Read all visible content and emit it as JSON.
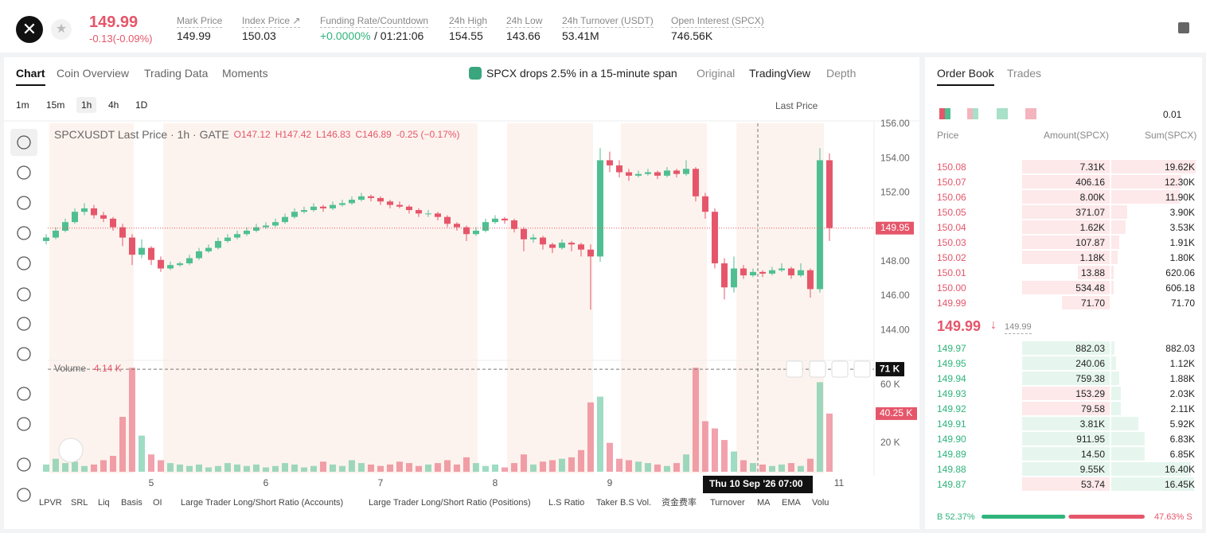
{
  "header": {
    "price": "149.99",
    "change": "-0.13(-0.09%)",
    "stats": [
      {
        "label": "Mark Price",
        "value": "149.99"
      },
      {
        "label": "Index Price ↗",
        "value": "150.03"
      },
      {
        "label": "Funding Rate/Countdown",
        "value": "+0.0000%",
        "extra": "/ 01:21:06"
      },
      {
        "label": "24h High",
        "value": "154.55"
      },
      {
        "label": "24h Low",
        "value": "143.66"
      },
      {
        "label": "24h Turnover (USDT)",
        "value": "53.41M"
      },
      {
        "label": "Open Interest (SPCX)",
        "value": "746.56K"
      }
    ]
  },
  "chart_tabs": [
    "Chart",
    "Coin Overview",
    "Trading Data",
    "Moments"
  ],
  "news": "SPCX drops 2.5% in a 15-minute span",
  "view_tabs": [
    "Original",
    "TradingView",
    "Depth"
  ],
  "timeframes": [
    "1m",
    "15m",
    "1h",
    "4h",
    "1D"
  ],
  "price_type": "Last Price",
  "indicators": [
    "LPVR",
    "SRL",
    "Liq",
    "Basis",
    "OI",
    "Large Trader Long/Short Ratio (Accounts)",
    "Large Trader Long/Short Ratio (Positions)",
    "L.S Ratio",
    "Taker B.S Vol.",
    "资金费率",
    "Turnover",
    "MA",
    "EMA",
    "Volu"
  ],
  "chart_data": {
    "type": "candlestick",
    "up_color": "#4fbf91",
    "down_color": "#e5566a",
    "legend": {
      "symbol": "SPCXUSDT Last Price · 1h · GATE",
      "open": "O147.12",
      "high": "H147.42",
      "low": "L146.83",
      "close": "C146.89",
      "change": "-0.25 (−0.17%)"
    },
    "xlim": [
      -0.25,
      86.67
    ],
    "xticks": [
      {
        "value": 11,
        "label": "5"
      },
      {
        "value": 23,
        "label": "6"
      },
      {
        "value": 35,
        "label": "7"
      },
      {
        "value": 47,
        "label": "8"
      },
      {
        "value": 59,
        "label": "9"
      },
      {
        "value": 83,
        "label": "11"
      }
    ],
    "ylim": [
      142.3,
      156.28
    ],
    "yticks": [
      {
        "value": 144,
        "label": "144.00"
      },
      {
        "value": 146,
        "label": "146.00"
      },
      {
        "value": 148,
        "label": "148.00"
      },
      {
        "value": 150,
        "label": "150.00"
      },
      {
        "value": 152,
        "label": "152.00"
      },
      {
        "value": 154,
        "label": "154.00"
      },
      {
        "value": 156,
        "label": "156.00"
      }
    ],
    "last_price": {
      "value": 149.95,
      "label": "149.95"
    },
    "crosshair": {
      "label": "Thu 10 Sep '26   07:00",
      "level": {
        "value": 71000,
        "label": "71 K"
      }
    },
    "candles": [
      [
        149.2,
        149.6,
        149.0,
        149.4
      ],
      [
        149.4,
        150.0,
        149.3,
        149.8
      ],
      [
        149.8,
        150.5,
        149.7,
        150.3
      ],
      [
        150.3,
        151.1,
        150.2,
        150.9
      ],
      [
        150.9,
        151.4,
        150.7,
        151.1
      ],
      [
        151.1,
        151.3,
        150.5,
        150.7
      ],
      [
        150.7,
        150.9,
        150.3,
        150.5
      ],
      [
        150.5,
        150.6,
        149.8,
        150.0
      ],
      [
        150.0,
        150.2,
        148.9,
        149.4
      ],
      [
        149.4,
        149.6,
        147.8,
        148.4
      ],
      [
        148.4,
        149.3,
        148.2,
        148.8
      ],
      [
        148.8,
        148.9,
        147.8,
        148.1
      ],
      [
        148.1,
        148.3,
        147.4,
        147.6
      ],
      [
        147.6,
        148.0,
        147.5,
        147.8
      ],
      [
        147.8,
        148.0,
        147.7,
        147.9
      ],
      [
        147.9,
        148.4,
        147.8,
        148.2
      ],
      [
        148.2,
        148.8,
        148.1,
        148.6
      ],
      [
        148.6,
        149.0,
        148.5,
        148.8
      ],
      [
        148.8,
        149.4,
        148.7,
        149.2
      ],
      [
        149.2,
        149.6,
        149.1,
        149.4
      ],
      [
        149.4,
        149.8,
        149.3,
        149.6
      ],
      [
        149.6,
        150.0,
        149.5,
        149.8
      ],
      [
        149.8,
        150.2,
        149.7,
        150.0
      ],
      [
        150.0,
        150.3,
        149.9,
        150.1
      ],
      [
        150.1,
        150.5,
        150.0,
        150.3
      ],
      [
        150.3,
        150.8,
        150.2,
        150.6
      ],
      [
        150.6,
        151.1,
        150.5,
        150.9
      ],
      [
        150.9,
        151.2,
        150.8,
        151.0
      ],
      [
        151.0,
        151.4,
        150.9,
        151.2
      ],
      [
        151.2,
        151.3,
        150.9,
        151.1
      ],
      [
        151.1,
        151.5,
        151.0,
        151.3
      ],
      [
        151.3,
        151.6,
        151.2,
        151.4
      ],
      [
        151.4,
        151.8,
        151.3,
        151.6
      ],
      [
        151.6,
        152.0,
        151.5,
        151.8
      ],
      [
        151.8,
        151.9,
        151.5,
        151.7
      ],
      [
        151.7,
        151.8,
        151.3,
        151.5
      ],
      [
        151.5,
        151.6,
        151.1,
        151.3
      ],
      [
        151.3,
        151.5,
        151.1,
        151.2
      ],
      [
        151.2,
        151.3,
        150.8,
        151.0
      ],
      [
        151.0,
        151.1,
        150.6,
        150.8
      ],
      [
        150.8,
        151.0,
        150.6,
        150.8
      ],
      [
        150.8,
        150.9,
        150.4,
        150.6
      ],
      [
        150.6,
        150.7,
        150.0,
        150.2
      ],
      [
        150.2,
        150.3,
        149.8,
        150.0
      ],
      [
        150.0,
        150.1,
        149.2,
        149.6
      ],
      [
        149.6,
        150.0,
        149.5,
        149.8
      ],
      [
        149.8,
        150.5,
        149.7,
        150.3
      ],
      [
        150.3,
        150.7,
        150.2,
        150.5
      ],
      [
        150.5,
        150.6,
        150.2,
        150.4
      ],
      [
        150.4,
        150.5,
        149.7,
        149.9
      ],
      [
        149.9,
        150.0,
        148.6,
        149.3
      ],
      [
        149.3,
        149.6,
        149.1,
        149.4
      ],
      [
        149.4,
        149.5,
        148.7,
        149.0
      ],
      [
        149.0,
        149.1,
        148.5,
        148.8
      ],
      [
        148.8,
        149.3,
        148.7,
        149.1
      ],
      [
        149.1,
        149.2,
        148.6,
        149.0
      ],
      [
        149.0,
        149.1,
        148.3,
        148.7
      ],
      [
        148.7,
        149.0,
        145.2,
        148.3
      ],
      [
        148.3,
        154.6,
        148.0,
        153.9
      ],
      [
        153.9,
        154.4,
        153.2,
        153.6
      ],
      [
        153.6,
        153.9,
        152.9,
        153.2
      ],
      [
        153.2,
        153.4,
        152.7,
        153.0
      ],
      [
        153.0,
        153.3,
        152.9,
        153.1
      ],
      [
        153.1,
        153.4,
        153.0,
        153.2
      ],
      [
        153.2,
        153.3,
        152.8,
        153.0
      ],
      [
        153.0,
        153.5,
        152.9,
        153.3
      ],
      [
        153.3,
        153.4,
        152.9,
        153.1
      ],
      [
        153.1,
        153.9,
        153.0,
        153.4
      ],
      [
        153.4,
        153.5,
        151.5,
        151.8
      ],
      [
        151.8,
        152.0,
        150.5,
        150.9
      ],
      [
        150.9,
        151.1,
        147.6,
        147.9
      ],
      [
        147.9,
        148.2,
        145.8,
        146.5
      ],
      [
        146.5,
        148.3,
        146.2,
        147.6
      ],
      [
        147.6,
        147.8,
        147.0,
        147.2
      ],
      [
        147.2,
        147.6,
        147.1,
        147.4
      ],
      [
        147.4,
        147.5,
        147.1,
        147.3
      ],
      [
        147.3,
        147.7,
        147.2,
        147.5
      ],
      [
        147.5,
        147.9,
        147.4,
        147.6
      ],
      [
        147.6,
        147.7,
        147.0,
        147.2
      ],
      [
        147.2,
        147.9,
        147.1,
        147.5
      ],
      [
        147.5,
        147.6,
        145.9,
        146.4
      ],
      [
        146.4,
        154.6,
        146.2,
        153.9
      ],
      [
        153.9,
        154.3,
        149.2,
        149.95
      ]
    ],
    "volume": {
      "name": "Volume",
      "label": "4.14 K",
      "ylim": [
        0,
        76000
      ],
      "yticks": [
        {
          "value": 20000,
          "label": "20 K"
        },
        {
          "value": 60000,
          "label": "60 K"
        }
      ],
      "current": {
        "value": 40250,
        "label": "40.25 K"
      },
      "values": [
        5000,
        9000,
        6000,
        7000,
        4000,
        5000,
        8000,
        11000,
        38000,
        72000,
        25000,
        12000,
        8000,
        6000,
        5000,
        4000,
        5000,
        3000,
        4000,
        6000,
        5000,
        4000,
        5000,
        3000,
        4000,
        6000,
        5000,
        3000,
        4000,
        7000,
        5000,
        4000,
        8000,
        6000,
        5000,
        4000,
        5000,
        7000,
        6000,
        4000,
        5000,
        6000,
        8000,
        5000,
        10000,
        6000,
        4000,
        5000,
        3000,
        6000,
        12000,
        5000,
        7000,
        8000,
        9000,
        10000,
        15000,
        48000,
        52000,
        20000,
        9000,
        8000,
        7000,
        6000,
        5000,
        4000,
        6000,
        12000,
        72000,
        35000,
        30000,
        22000,
        14000,
        8000,
        6000,
        5000,
        4000,
        5000,
        6000,
        4000,
        9000,
        62000,
        40250
      ]
    }
  },
  "order_book": {
    "tabs": [
      "Order Book",
      "Trades"
    ],
    "precision": "0.01",
    "columns": [
      "Price",
      "Amount(SPCX)",
      "Sum(SPCX)"
    ],
    "asks": [
      [
        "150.08",
        "7.31K",
        "19.62K"
      ],
      [
        "150.07",
        "406.16",
        "12.30K"
      ],
      [
        "150.06",
        "8.00K",
        "11.90K"
      ],
      [
        "150.05",
        "371.07",
        "3.90K"
      ],
      [
        "150.04",
        "1.62K",
        "3.53K"
      ],
      [
        "150.03",
        "107.87",
        "1.91K"
      ],
      [
        "150.02",
        "1.18K",
        "1.80K"
      ],
      [
        "150.01",
        "13.88",
        "620.06"
      ],
      [
        "150.00",
        "534.48",
        "606.18"
      ],
      [
        "149.99",
        "71.70",
        "71.70"
      ]
    ],
    "mid": {
      "price": "149.99",
      "mark": "149.99"
    },
    "bids": [
      [
        "149.97",
        "882.03",
        "882.03"
      ],
      [
        "149.95",
        "240.06",
        "1.12K"
      ],
      [
        "149.94",
        "759.38",
        "1.88K"
      ],
      [
        "149.93",
        "153.29",
        "2.03K"
      ],
      [
        "149.92",
        "79.58",
        "2.11K"
      ],
      [
        "149.91",
        "3.81K",
        "5.92K"
      ],
      [
        "149.90",
        "911.95",
        "6.83K"
      ],
      [
        "149.89",
        "14.50",
        "6.85K"
      ],
      [
        "149.88",
        "9.55K",
        "16.40K"
      ],
      [
        "149.87",
        "53.74",
        "16.45K"
      ]
    ],
    "buy_ratio": {
      "value": 52.37,
      "label": "B 52.37%"
    },
    "sell_ratio": {
      "value": 47.63,
      "label": "47.63% S"
    }
  }
}
